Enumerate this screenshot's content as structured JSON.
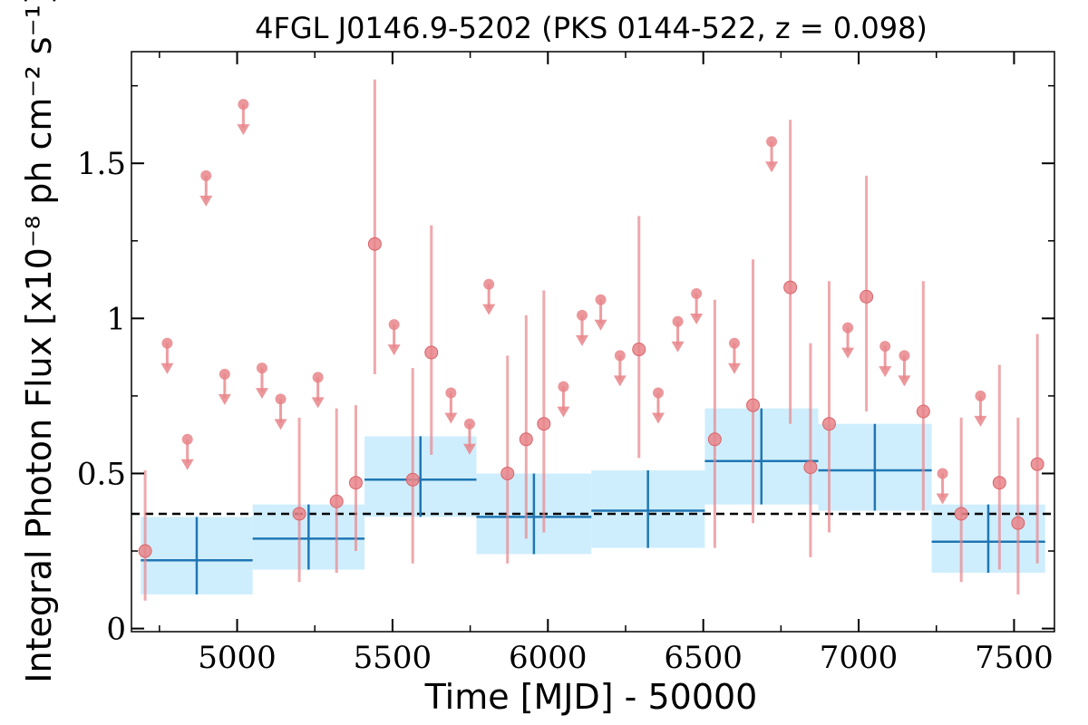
{
  "chart_data": {
    "type": "scatter",
    "title": "4FGL J0146.9-5202 (PKS 0144-522, z = 0.098)",
    "xlabel": "Time [MJD] - 50000",
    "ylabel": "Integral Photon Flux [x10⁻⁸ ph cm⁻² s⁻¹]",
    "xlim": [
      4660,
      7630
    ],
    "ylim": [
      -0.01,
      1.86
    ],
    "x_ticks": [
      5000,
      5500,
      6000,
      6500,
      7000,
      7500
    ],
    "x_tick_labels": [
      "5000",
      "5500",
      "6000",
      "6500",
      "7000",
      "7500"
    ],
    "y_ticks": [
      0,
      0.5,
      1,
      1.5
    ],
    "y_tick_labels": [
      "0",
      "0.5",
      "1",
      "1.5"
    ],
    "grid": false,
    "reference_level": 0.37,
    "colors": {
      "points": "#e8858a",
      "bins_band": "#a8e0fb",
      "bins_line": "#1f77b4",
      "reference_line": "#000000"
    },
    "series": [
      {
        "kind": "detections",
        "points": [
          {
            "x": 4704,
            "y": 0.25,
            "lo": 0.09,
            "hi": 0.51
          },
          {
            "x": 5200,
            "y": 0.37,
            "lo": 0.15,
            "hi": 0.68
          },
          {
            "x": 5320,
            "y": 0.41,
            "lo": 0.18,
            "hi": 0.71
          },
          {
            "x": 5382,
            "y": 0.47,
            "lo": 0.25,
            "hi": 0.72
          },
          {
            "x": 5443,
            "y": 1.24,
            "lo": 0.82,
            "hi": 1.77
          },
          {
            "x": 5565,
            "y": 0.48,
            "lo": 0.21,
            "hi": 0.84
          },
          {
            "x": 5625,
            "y": 0.89,
            "lo": 0.56,
            "hi": 1.3
          },
          {
            "x": 5870,
            "y": 0.5,
            "lo": 0.21,
            "hi": 0.88
          },
          {
            "x": 5930,
            "y": 0.61,
            "lo": 0.29,
            "hi": 1.01
          },
          {
            "x": 5987,
            "y": 0.66,
            "lo": 0.31,
            "hi": 1.09
          },
          {
            "x": 6293,
            "y": 0.9,
            "lo": 0.55,
            "hi": 1.33
          },
          {
            "x": 6537,
            "y": 0.61,
            "lo": 0.26,
            "hi": 1.06
          },
          {
            "x": 6660,
            "y": 0.72,
            "lo": 0.34,
            "hi": 1.19
          },
          {
            "x": 6780,
            "y": 1.1,
            "lo": 0.66,
            "hi": 1.64
          },
          {
            "x": 6845,
            "y": 0.52,
            "lo": 0.23,
            "hi": 0.92
          },
          {
            "x": 6905,
            "y": 0.66,
            "lo": 0.31,
            "hi": 1.12
          },
          {
            "x": 7025,
            "y": 1.07,
            "lo": 0.7,
            "hi": 1.46
          },
          {
            "x": 7208,
            "y": 0.7,
            "lo": 0.38,
            "hi": 1.12
          },
          {
            "x": 7330,
            "y": 0.37,
            "lo": 0.15,
            "hi": 0.68
          },
          {
            "x": 7453,
            "y": 0.47,
            "lo": 0.19,
            "hi": 0.85
          },
          {
            "x": 7513,
            "y": 0.34,
            "lo": 0.11,
            "hi": 0.68
          },
          {
            "x": 7575,
            "y": 0.53,
            "lo": 0.21,
            "hi": 0.95
          }
        ]
      },
      {
        "kind": "upper_limits",
        "points": [
          {
            "x": 4775,
            "y": 0.92
          },
          {
            "x": 4840,
            "y": 0.61
          },
          {
            "x": 4900,
            "y": 1.46
          },
          {
            "x": 4960,
            "y": 0.82
          },
          {
            "x": 5020,
            "y": 1.69
          },
          {
            "x": 5080,
            "y": 0.84
          },
          {
            "x": 5140,
            "y": 0.74
          },
          {
            "x": 5260,
            "y": 0.81
          },
          {
            "x": 5505,
            "y": 0.98
          },
          {
            "x": 5688,
            "y": 0.76
          },
          {
            "x": 5748,
            "y": 0.66
          },
          {
            "x": 5810,
            "y": 1.11
          },
          {
            "x": 6050,
            "y": 0.78
          },
          {
            "x": 6110,
            "y": 1.01
          },
          {
            "x": 6170,
            "y": 1.06
          },
          {
            "x": 6232,
            "y": 0.88
          },
          {
            "x": 6355,
            "y": 0.76
          },
          {
            "x": 6418,
            "y": 0.99
          },
          {
            "x": 6478,
            "y": 1.08
          },
          {
            "x": 6600,
            "y": 0.92
          },
          {
            "x": 6720,
            "y": 1.57
          },
          {
            "x": 6965,
            "y": 0.97
          },
          {
            "x": 7085,
            "y": 0.91
          },
          {
            "x": 7147,
            "y": 0.88
          },
          {
            "x": 7270,
            "y": 0.5
          },
          {
            "x": 7392,
            "y": 0.75
          }
        ]
      },
      {
        "kind": "binned",
        "bins": [
          {
            "x0": 4690,
            "x1": 5050,
            "xc": 4870,
            "y": 0.22,
            "lo": 0.11,
            "hi": 0.36
          },
          {
            "x0": 5050,
            "x1": 5410,
            "xc": 5230,
            "y": 0.29,
            "lo": 0.19,
            "hi": 0.4
          },
          {
            "x0": 5410,
            "x1": 5770,
            "xc": 5590,
            "y": 0.48,
            "lo": 0.36,
            "hi": 0.62
          },
          {
            "x0": 5770,
            "x1": 6140,
            "xc": 5955,
            "y": 0.36,
            "lo": 0.24,
            "hi": 0.5
          },
          {
            "x0": 6140,
            "x1": 6505,
            "xc": 6322,
            "y": 0.38,
            "lo": 0.26,
            "hi": 0.51
          },
          {
            "x0": 6505,
            "x1": 6870,
            "xc": 6687,
            "y": 0.54,
            "lo": 0.4,
            "hi": 0.71
          },
          {
            "x0": 6870,
            "x1": 7235,
            "xc": 7052,
            "y": 0.51,
            "lo": 0.38,
            "hi": 0.66
          },
          {
            "x0": 7235,
            "x1": 7600,
            "xc": 7417,
            "y": 0.28,
            "lo": 0.18,
            "hi": 0.4
          }
        ]
      }
    ]
  }
}
